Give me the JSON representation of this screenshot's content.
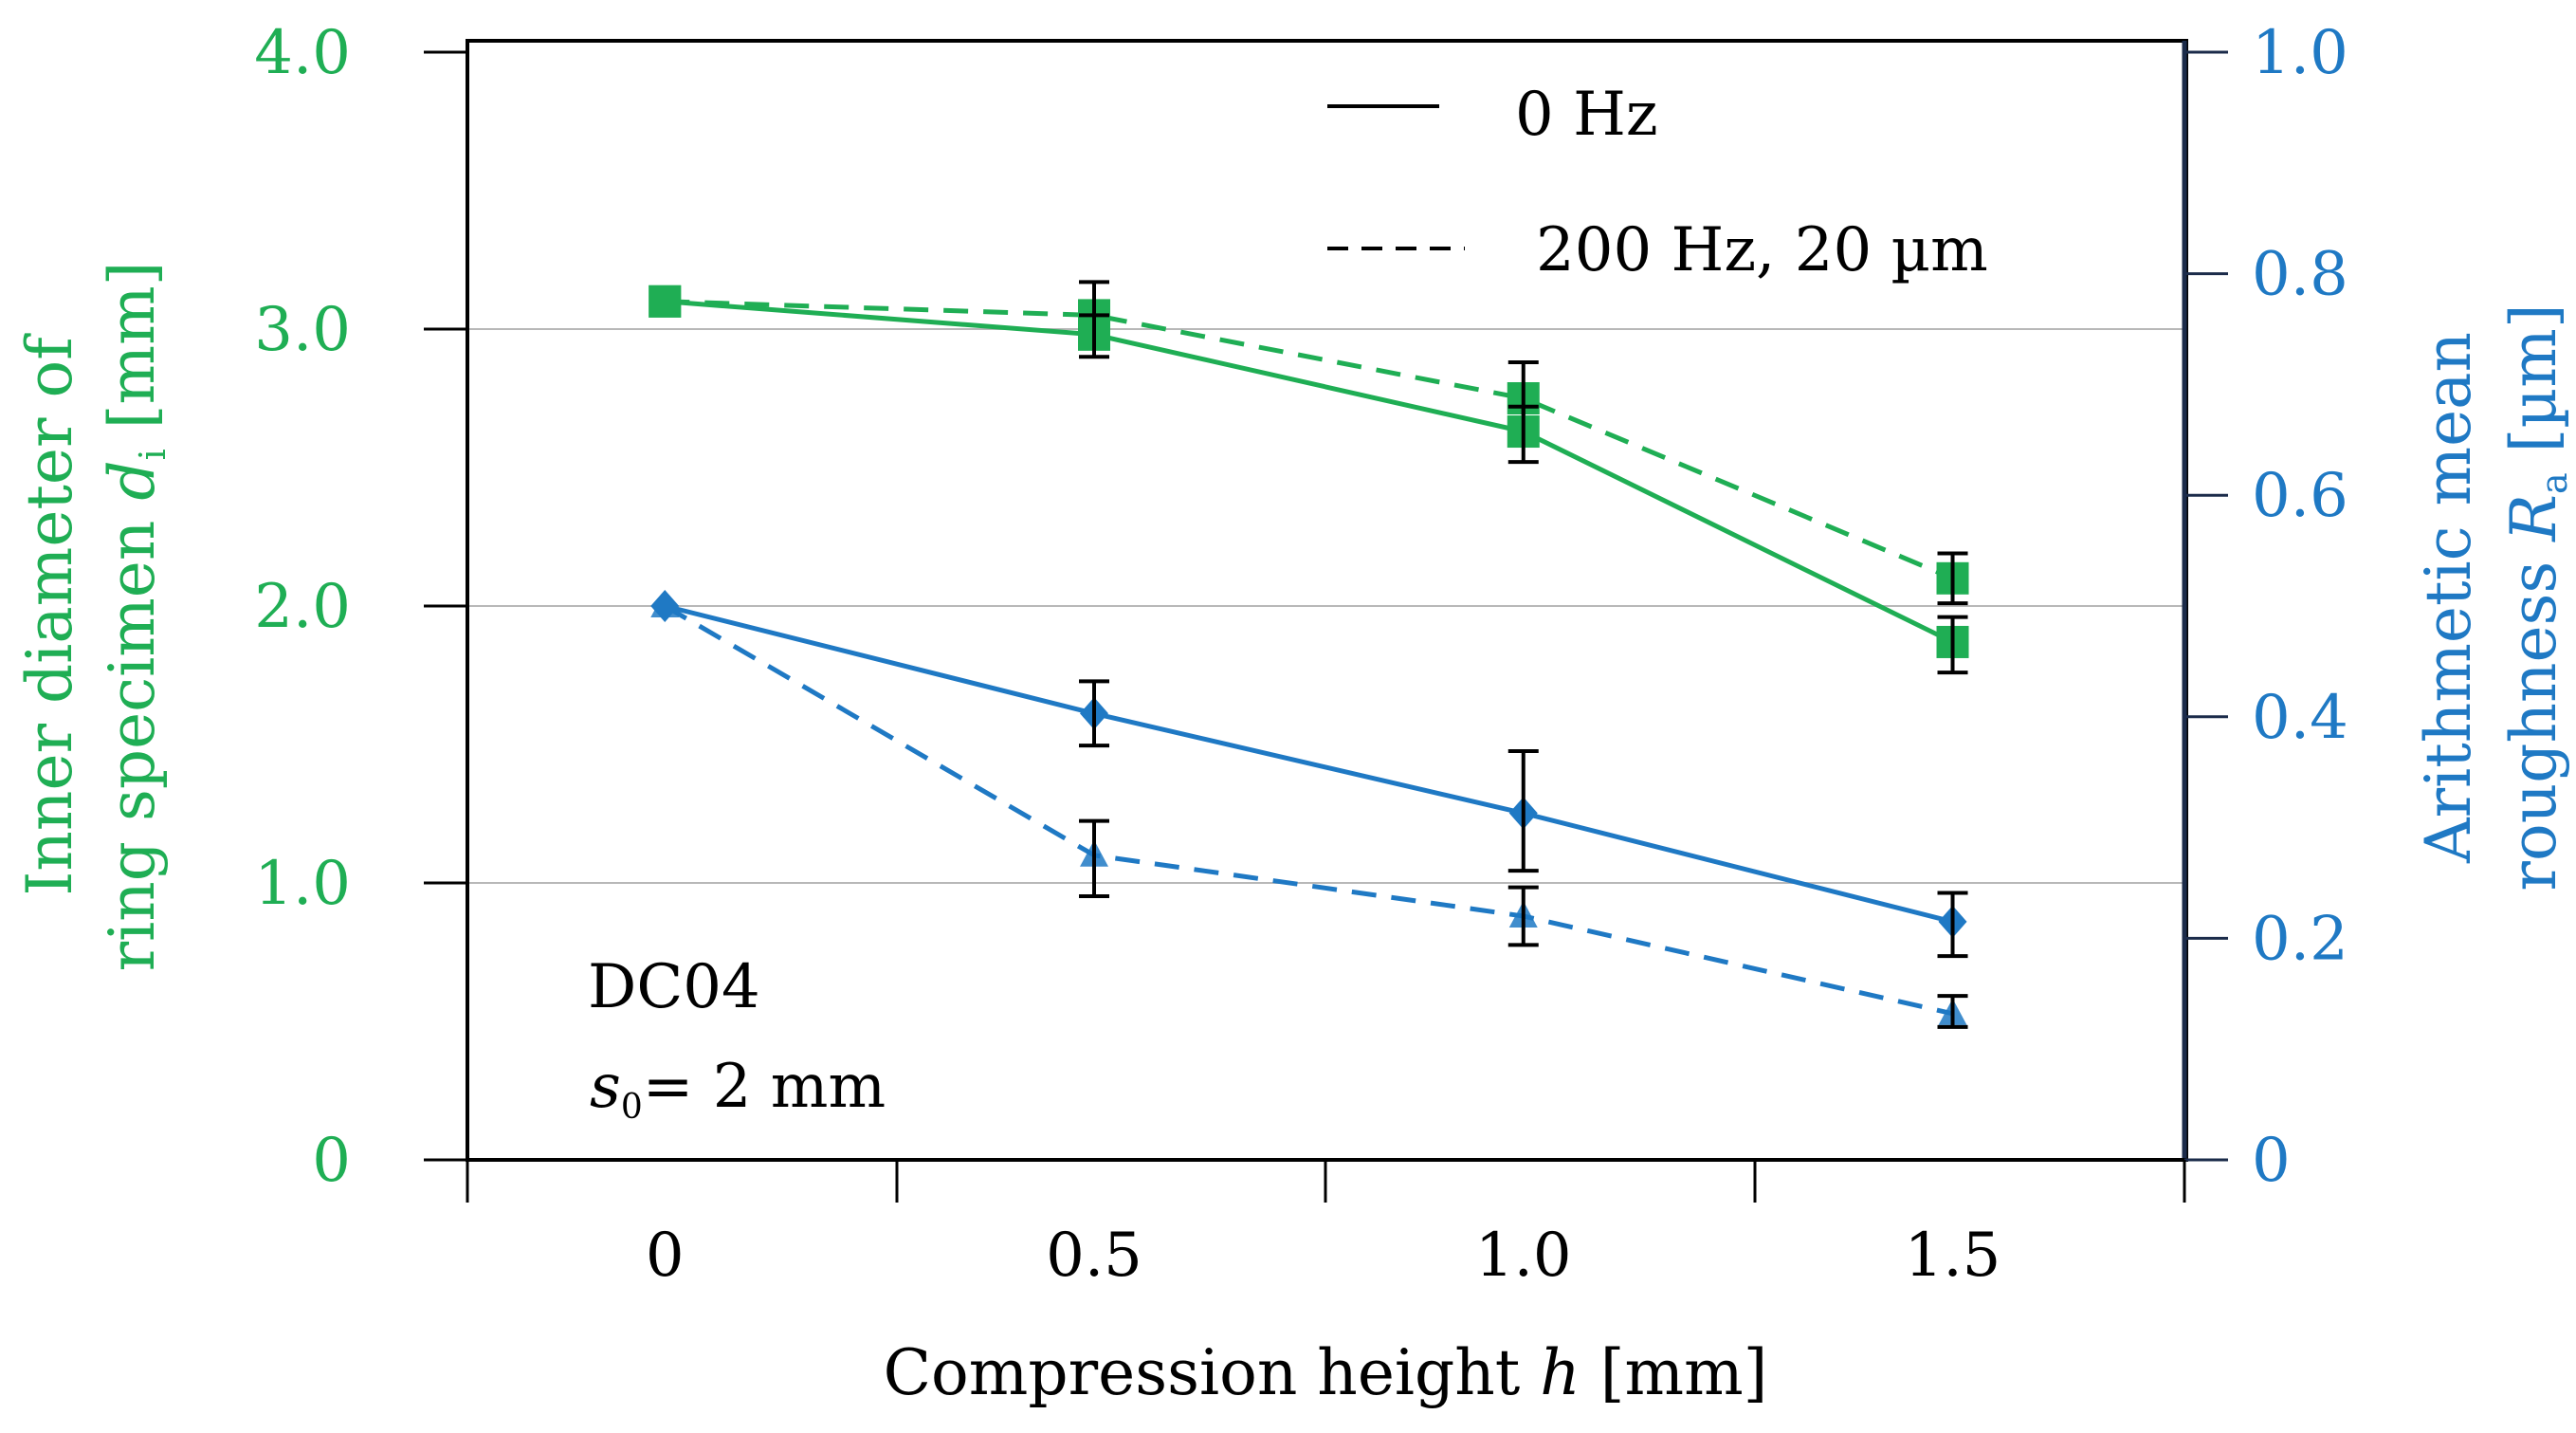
{
  "chart_data": {
    "type": "line",
    "x": [
      0,
      0.5,
      1.0,
      1.5
    ],
    "x_tick_labels": [
      "0",
      "0.5",
      "1.0",
      "1.5"
    ],
    "xlim": [
      -0.23,
      1.77
    ],
    "xlabel": {
      "prefix": "Compression height ",
      "var": "h",
      "suffix": " [mm]"
    },
    "y_left": {
      "range": [
        0,
        4.0
      ],
      "ticks": [
        0,
        1.0,
        2.0,
        3.0,
        4.0
      ],
      "tick_labels": [
        "0",
        "1.0",
        "2.0",
        "3.0",
        "4.0"
      ],
      "label_line1": "Inner diameter of",
      "label_line2_prefix": "ring specimen ",
      "label_line2_var": "d",
      "label_line2_sub": "i",
      "label_line2_suffix": " [mm]",
      "color": "#1fae54"
    },
    "y_right": {
      "range": [
        0,
        1.0
      ],
      "ticks": [
        0,
        0.2,
        0.4,
        0.6,
        0.8,
        1.0
      ],
      "tick_labels": [
        "0",
        "0.2",
        "0.4",
        "0.6",
        "0.8",
        "1.0"
      ],
      "label_line1": "Arithmetic mean",
      "label_line2_prefix": "roughness ",
      "label_line2_var": "R",
      "label_line2_sub": "a",
      "label_line2_suffix": " [µm]",
      "color": "#1f79c4"
    },
    "gridlines_left": [
      1.0,
      2.0,
      3.0
    ],
    "series": [
      {
        "name": "Inner diameter, 0 Hz",
        "axis": "left",
        "style": "solid",
        "marker": "square",
        "color": "#1fae54",
        "values": [
          3.1,
          2.98,
          2.63,
          1.87
        ],
        "err_low": [
          3.1,
          2.9,
          2.52,
          1.76
        ],
        "err_high": [
          3.1,
          3.05,
          2.72,
          1.96
        ]
      },
      {
        "name": "Inner diameter, 200 Hz, 20 µm",
        "axis": "left",
        "style": "dashed",
        "marker": "square",
        "color": "#1fae54",
        "values": [
          3.1,
          3.05,
          2.75,
          2.1
        ],
        "err_low": [
          3.1,
          2.96,
          2.64,
          2.01
        ],
        "err_high": [
          3.1,
          3.17,
          2.88,
          2.19
        ]
      },
      {
        "name": "Roughness, 0 Hz",
        "axis": "right",
        "style": "solid",
        "marker": "diamond",
        "color": "#1f79c4",
        "values": [
          0.5,
          0.403,
          0.313,
          0.215
        ],
        "err_low": [
          0.5,
          0.374,
          0.261,
          0.184
        ],
        "err_high": [
          0.5,
          0.432,
          0.369,
          0.241
        ]
      },
      {
        "name": "Roughness, 200 Hz, 20 µm",
        "axis": "right",
        "style": "dashed",
        "marker": "triangle",
        "color": "#1f79c4",
        "values": [
          0.5,
          0.275,
          0.22,
          0.132
        ],
        "err_low": [
          0.5,
          0.238,
          0.194,
          0.12
        ],
        "err_high": [
          0.5,
          0.306,
          0.246,
          0.148
        ]
      }
    ],
    "legend": {
      "position": "top-center",
      "entries": [
        {
          "style": "solid",
          "label": "0 Hz"
        },
        {
          "style": "dashed",
          "label": "200 Hz, 20 µm"
        }
      ]
    },
    "annotation": {
      "material": "DC04",
      "thickness_var": "s",
      "thickness_sub": "0",
      "thickness_suffix": "= 2 mm"
    }
  }
}
